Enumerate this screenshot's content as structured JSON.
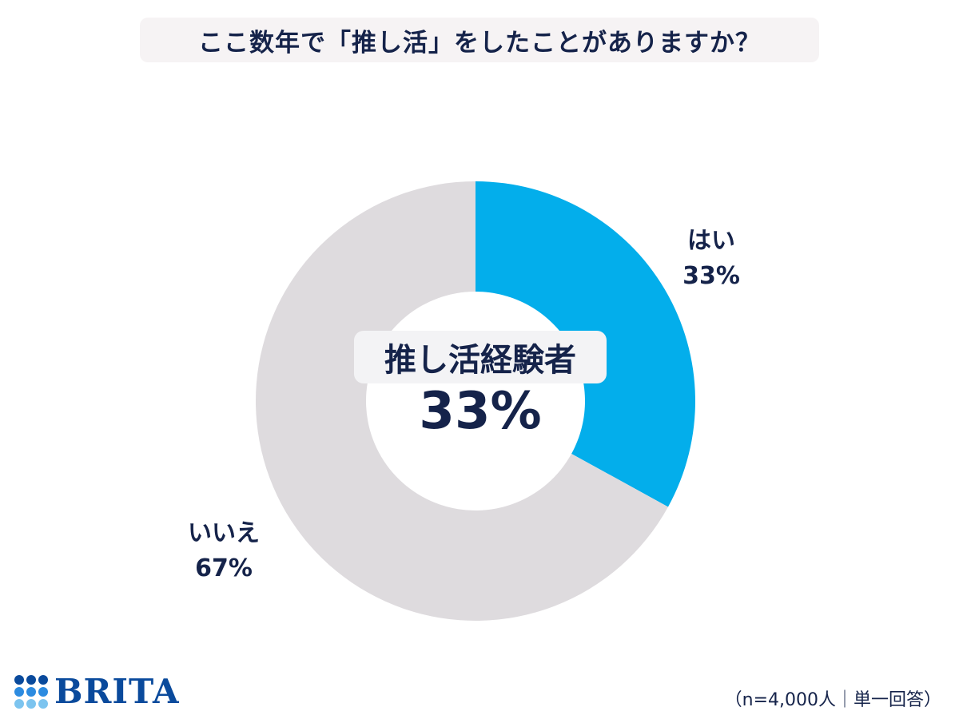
{
  "title": "ここ数年で「推し活」をしたことがありますか？",
  "chart_data": {
    "type": "pie",
    "categories": [
      "はい",
      "いいえ"
    ],
    "values": [
      33,
      67
    ],
    "percent_labels": [
      "33%",
      "67%"
    ],
    "colors": [
      "#03aeeb",
      "#dedbde"
    ]
  },
  "center": {
    "label": "推し活経験者",
    "value": "33%"
  },
  "footnote": "（n=4,000人｜単一回答）",
  "logo": {
    "text": "BRITA",
    "colors": [
      "#0a4a9c",
      "#2c8be0",
      "#7cc4ef"
    ]
  }
}
